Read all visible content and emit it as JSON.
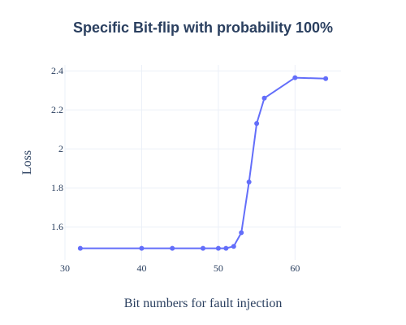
{
  "chart_data": {
    "type": "line",
    "title": "Specific Bit-flip with probability 100%",
    "xlabel": "Bit numbers for fault injection",
    "ylabel": "Loss",
    "xlim": [
      30,
      66
    ],
    "ylim": [
      1.43,
      2.43
    ],
    "xticks": [
      30,
      40,
      50,
      60
    ],
    "yticks": [
      1.6,
      1.8,
      2.0,
      2.2,
      2.4
    ],
    "ytick_labels": [
      "1.6",
      "1.8",
      "2",
      "2.2",
      "2.4"
    ],
    "grid": true,
    "series": [
      {
        "x": [
          32,
          40,
          44,
          48,
          50,
          51,
          52,
          53,
          54,
          55,
          56,
          60,
          64
        ],
        "y": [
          1.49,
          1.49,
          1.49,
          1.49,
          1.49,
          1.49,
          1.5,
          1.57,
          1.83,
          2.13,
          2.26,
          2.365,
          2.36
        ],
        "color": "#636efa"
      }
    ]
  }
}
